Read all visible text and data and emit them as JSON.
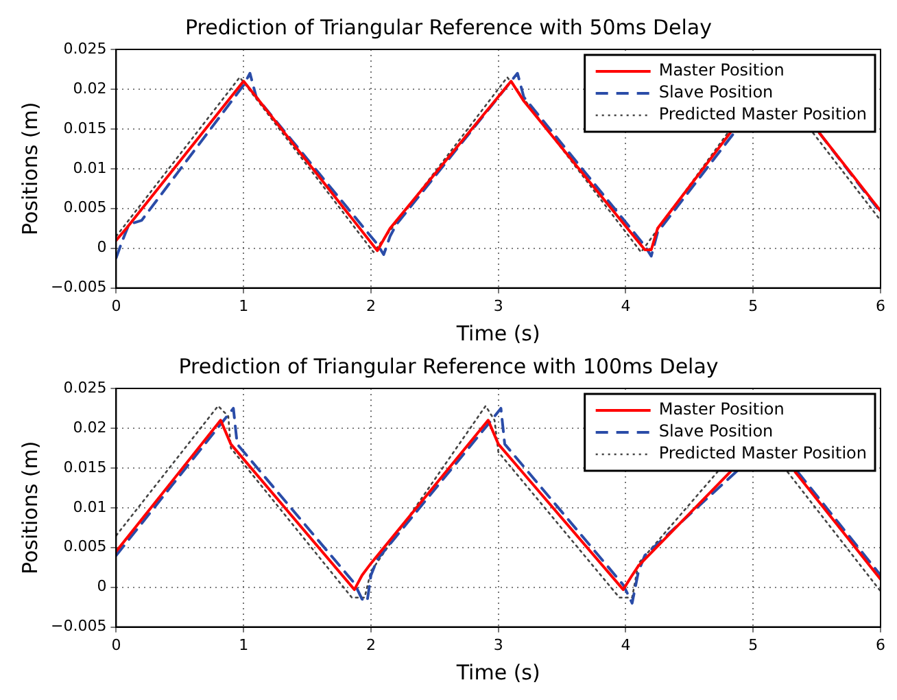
{
  "chart_data": [
    {
      "type": "line",
      "title": "Prediction of Triangular Reference with 50ms Delay",
      "xlabel": "Time (s)",
      "ylabel": "Positions (m)",
      "xlim": [
        0,
        6
      ],
      "xticks": [
        0,
        1,
        2,
        3,
        4,
        5,
        6
      ],
      "ylim": [
        -0.005,
        0.025
      ],
      "yticks": [
        {
          "value": -0.005,
          "label": "−0.005"
        },
        0,
        0.005,
        0.01,
        0.015,
        0.02,
        0.025
      ],
      "grid": true,
      "legend": "top right",
      "marker": "none",
      "series": [
        {
          "name": "Master Position",
          "color": "#ff0000",
          "line_style": "solid",
          "x": [
            0,
            0.08,
            1.0,
            1.1,
            2.05,
            2.15,
            3.1,
            3.2,
            4.15,
            4.2,
            4.25,
            4.82,
            5.2,
            5.52,
            6
          ],
          "values": [
            0.001,
            0.0025,
            0.021,
            0.019,
            -0.0003,
            0.0025,
            0.021,
            0.0185,
            -0.0002,
            -0.0002,
            0.0025,
            0.0145,
            null,
            0.0145,
            0.0047
          ]
        },
        {
          "name": "Slave Position",
          "color": "#2a4ca8",
          "line_style": "dashed",
          "x": [
            0,
            0.05,
            0.1,
            0.2,
            1.0,
            1.05,
            1.1,
            2.05,
            2.1,
            2.15,
            2.2,
            3.1,
            3.15,
            3.2,
            4.15,
            4.2,
            4.25,
            4.85,
            5.2,
            5.52,
            6
          ],
          "values": [
            -0.0012,
            0.001,
            0.003,
            0.0035,
            0.0205,
            0.022,
            0.019,
            0.0005,
            -0.0008,
            0.0015,
            0.003,
            0.021,
            0.022,
            0.019,
            0.0003,
            -0.001,
            0.002,
            0.0145,
            null,
            0.0145,
            0.0045
          ]
        },
        {
          "name": "Predicted Master Position",
          "color": "#444444",
          "line_style": "dotted",
          "x": [
            0,
            0.97,
            2.02,
            3.07,
            4.12,
            4.8,
            5.15,
            5.47,
            6
          ],
          "values": [
            0.0015,
            0.0215,
            -0.0005,
            0.0215,
            -0.0005,
            0.0145,
            null,
            0.0145,
            0.0035
          ]
        }
      ]
    },
    {
      "type": "line",
      "title": "Prediction of Triangular Reference with 100ms Delay",
      "xlabel": "Time (s)",
      "ylabel": "Positions (m)",
      "xlim": [
        0,
        6
      ],
      "xticks": [
        0,
        1,
        2,
        3,
        4,
        5,
        6
      ],
      "ylim": [
        -0.005,
        0.025
      ],
      "yticks": [
        {
          "value": -0.005,
          "label": "−0.005"
        },
        0,
        0.005,
        0.01,
        0.015,
        0.02,
        0.025
      ],
      "grid": true,
      "legend": "top right",
      "marker": "none",
      "series": [
        {
          "name": "Master Position",
          "color": "#ff0000",
          "line_style": "solid",
          "x": [
            0,
            0.82,
            0.9,
            1.87,
            1.93,
            2.0,
            2.92,
            3.0,
            3.98,
            4.05,
            4.1,
            4.82,
            5.05,
            5.33,
            6
          ],
          "values": [
            0.0045,
            0.021,
            0.018,
            -0.0003,
            0.0015,
            0.003,
            0.021,
            0.018,
            -0.0003,
            0.0015,
            0.0027,
            0.0145,
            null,
            0.0145,
            0.001
          ]
        },
        {
          "name": "Slave Position",
          "color": "#2a4ca8",
          "line_style": "dashed",
          "x": [
            0,
            0.82,
            0.92,
            0.95,
            1.87,
            1.93,
            1.97,
            2.0,
            2.05,
            2.92,
            3.02,
            3.05,
            3.98,
            4.05,
            4.1,
            4.15,
            4.9,
            5.05,
            5.35,
            6
          ],
          "values": [
            0.004,
            0.0205,
            0.0225,
            0.018,
            0.0005,
            -0.0015,
            -0.0018,
            0.0015,
            0.0035,
            0.0205,
            0.0225,
            0.018,
            0.0003,
            -0.002,
            0.002,
            0.004,
            0.015,
            null,
            0.0145,
            0.0015
          ]
        },
        {
          "name": "Predicted Master Position",
          "color": "#444444",
          "line_style": "dotted",
          "x": [
            0,
            0.8,
            0.88,
            0.9,
            1.85,
            1.95,
            2.0,
            2.9,
            2.97,
            3.0,
            3.95,
            4.05,
            4.1,
            4.72,
            5.0,
            5.27,
            6
          ],
          "values": [
            0.0065,
            0.0228,
            0.0215,
            0.0175,
            -0.0013,
            -0.0013,
            0.002,
            0.0228,
            0.021,
            0.017,
            -0.0013,
            -0.0013,
            0.003,
            0.0145,
            null,
            0.0145,
            -0.0005
          ]
        }
      ]
    }
  ]
}
